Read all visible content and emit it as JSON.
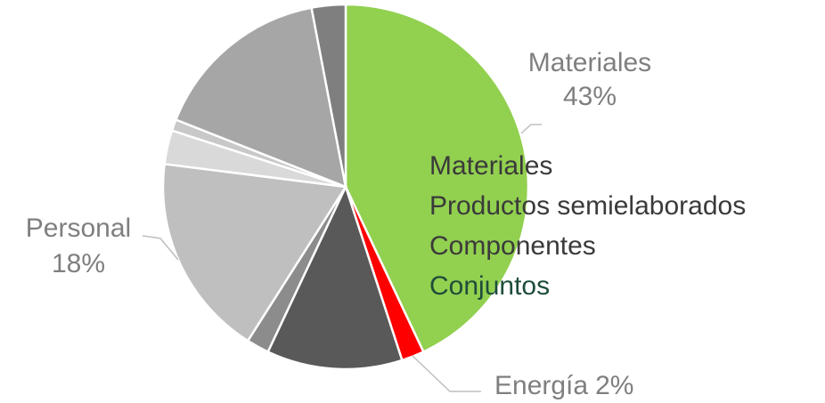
{
  "chart_data": {
    "type": "pie",
    "categories": [
      "Materiales",
      "Energía",
      null,
      null,
      "Personal",
      null,
      null,
      null,
      null
    ],
    "values": [
      43,
      2,
      12,
      2,
      18,
      3,
      1,
      16,
      3
    ],
    "value_labels": [
      "43%",
      "2%",
      null,
      null,
      "18%",
      null,
      null,
      null,
      null
    ],
    "colors": [
      "#92d050",
      "#ff0000",
      "#595959",
      "#8c8c8c",
      "#bfbfbf",
      "#d9d9d9",
      "#c8c8c8",
      "#a6a6a6",
      "#7f7f7f"
    ],
    "annotations": [
      "Materiales",
      "Productos semielaborados",
      "Componentes",
      "Conjuntos"
    ],
    "annotation_colors": [
      "#3a3a3a",
      "#3a3a3a",
      "#3a3a3a",
      "#1e4d3a"
    ]
  }
}
